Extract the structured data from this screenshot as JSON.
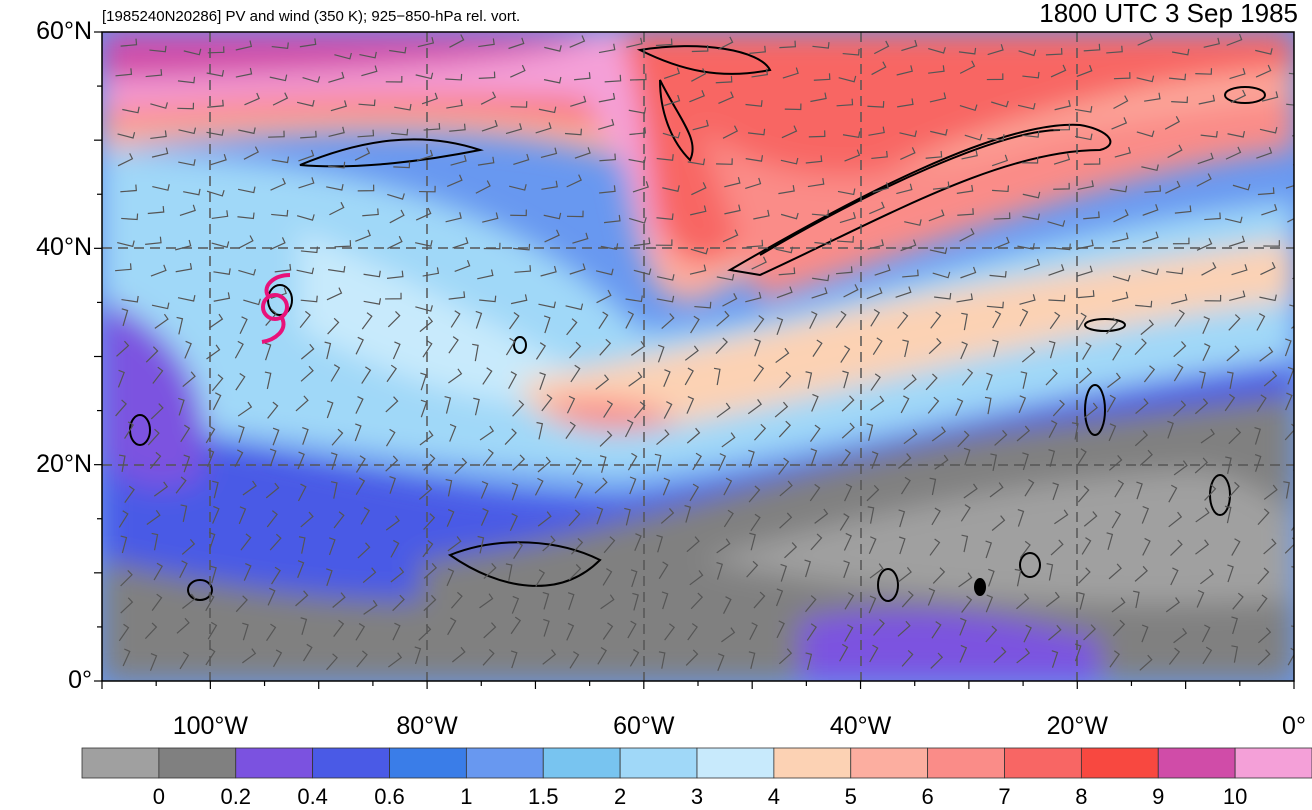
{
  "chart_data": {
    "type": "heatmap",
    "title_left": "[1985240N20286] PV and wind (350 K); 925−850-hPa rel. vort.",
    "title_right": "1800 UTC 3 Sep 1985",
    "lon_range": [
      -110,
      0
    ],
    "lat_range": [
      0,
      60
    ],
    "lon_ticks": [
      {
        "value": -100,
        "label": "100°W"
      },
      {
        "value": -80,
        "label": "80°W"
      },
      {
        "value": -60,
        "label": "60°W"
      },
      {
        "value": -40,
        "label": "40°W"
      },
      {
        "value": -20,
        "label": "20°W"
      },
      {
        "value": 0,
        "label": "0°"
      }
    ],
    "lat_ticks": [
      {
        "value": 0,
        "label": "0°"
      },
      {
        "value": 20,
        "label": "20°N"
      },
      {
        "value": 40,
        "label": "40°N"
      },
      {
        "value": 60,
        "label": "60°N"
      }
    ],
    "grid": true,
    "colorbar": {
      "placement": "bottom",
      "labels": [
        "0",
        "0.2",
        "0.4",
        "0.6",
        "1",
        "1.5",
        "2",
        "3",
        "4",
        "5",
        "6",
        "7",
        "8",
        "9",
        "10"
      ],
      "colors": [
        "#a0a0a0",
        "#808080",
        "#7b52e0",
        "#4a5ae6",
        "#3a7de8",
        "#6898f0",
        "#78c4f0",
        "#a0d8f8",
        "#c8eafc",
        "#fcd2b4",
        "#fcaea0",
        "#fa8c88",
        "#f86664",
        "#f84840",
        "#d04ca8",
        "#f4a0d8"
      ]
    },
    "storm_center": {
      "lon": -93.5,
      "lat": 34.5,
      "color": "#e8127a"
    }
  }
}
